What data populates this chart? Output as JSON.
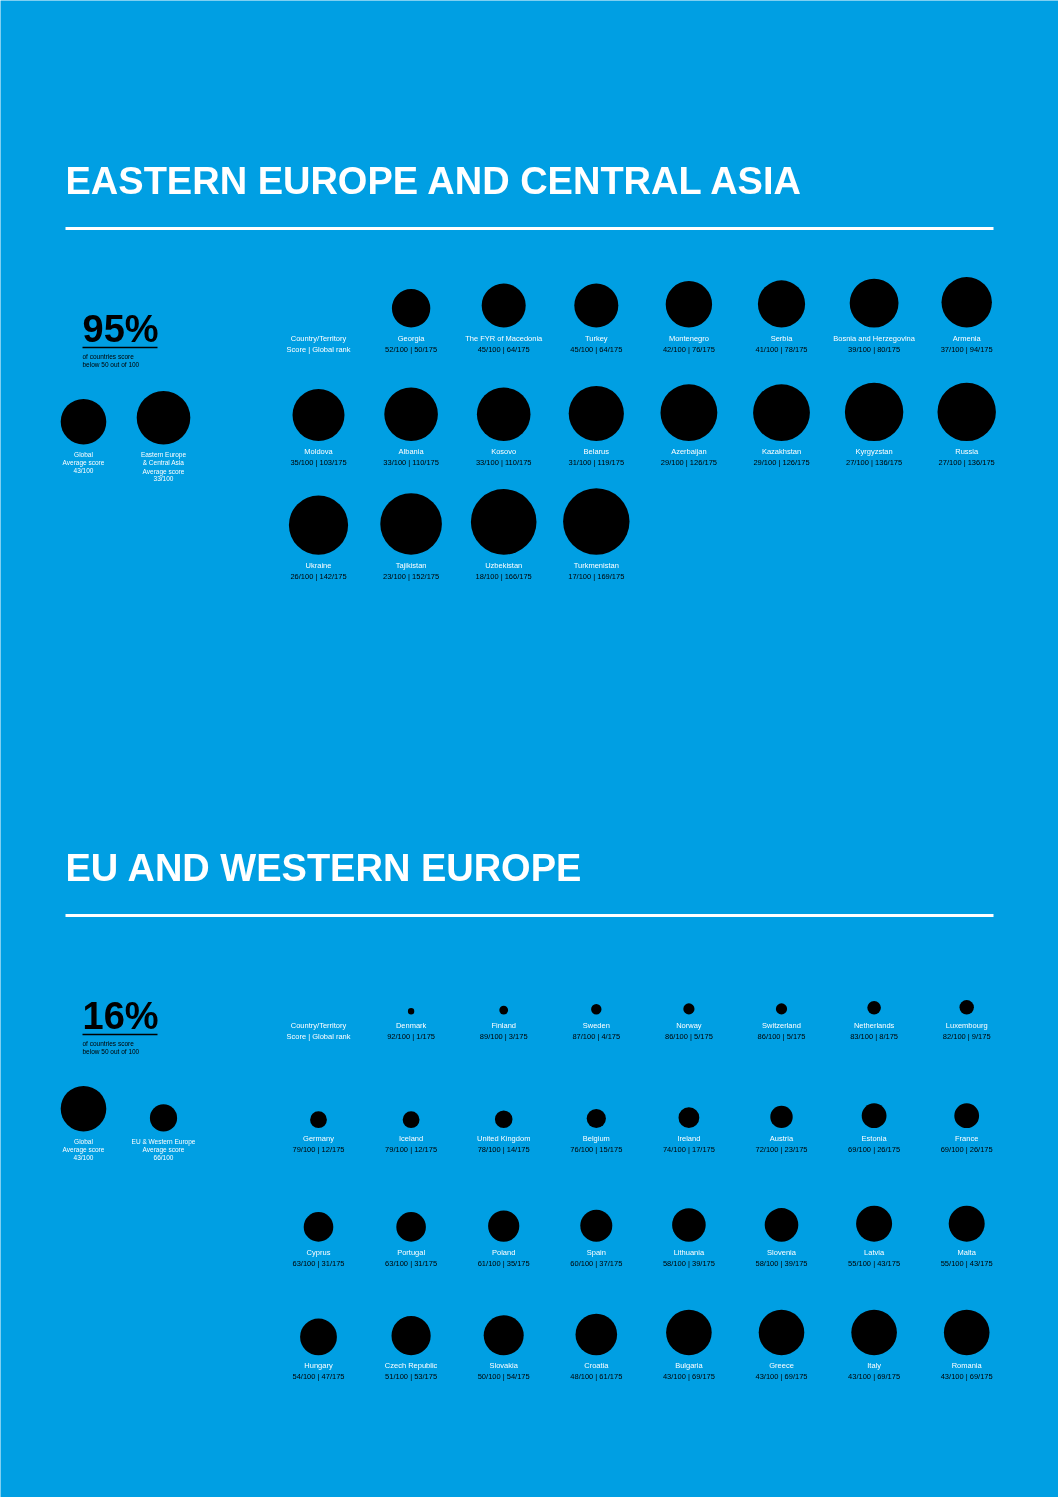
{
  "chart_data": [
    {
      "type": "other",
      "title": "EASTERN EUROPE AND CENTRAL ASIA",
      "color": "#000000",
      "annotations": [
        "95%",
        "of countries score\nbelow 50 out of 100",
        "Country/Territory\nScore | Global rank"
      ],
      "categories": [
        "Global\nAverage score",
        "Eastern Europe\n& Central Asia\nAverage score",
        "Georgia",
        "The FYR of Macedonia",
        "Turkey",
        "Montenegro",
        "Serbia",
        "Bosnia and Herzegovina",
        "Armenia",
        "Moldova",
        "Albania",
        "Kosovo",
        "Belarus",
        "Azerbaijan",
        "Kazakhstan",
        "Kyrgyzstan",
        "Russia",
        "Ukraine",
        "Tajikistan",
        "Uzbekistan",
        "Turkmenistan"
      ],
      "series": [
        {
          "values": [
            43,
            33,
            null,
            null,
            null,
            null,
            null,
            null,
            null,
            null,
            null,
            null,
            null,
            null,
            null,
            null,
            null,
            null,
            null,
            null,
            null
          ],
          "value_labels": [
            "43/100",
            "33/100",
            null,
            null,
            null,
            null,
            null,
            null,
            null,
            null,
            null,
            null,
            null,
            null,
            null,
            null,
            null,
            null,
            null,
            null,
            null
          ]
        },
        {
          "values": [
            null,
            null,
            52,
            45,
            45,
            42,
            41,
            39,
            37,
            35,
            33,
            33,
            31,
            29,
            29,
            27,
            27,
            26,
            23,
            18,
            17
          ],
          "value_labels": [
            null,
            null,
            "52/100 | 50/175",
            "45/100 | 64/175",
            "45/100 | 64/175",
            "42/100 | 76/175",
            "41/100 | 78/175",
            "39/100 | 80/175",
            "37/100 | 94/175",
            "35/100 | 103/175",
            "33/100 | 110/175",
            "33/100 | 110/175",
            "31/100 | 119/175",
            "29/100 | 126/175",
            "29/100 | 126/175",
            "27/100 | 136/175",
            "27/100 | 136/175",
            "26/100 | 142/175",
            "23/100 | 152/175",
            "18/100 | 166/175",
            "17/100 | 169/175"
          ]
        }
      ]
    },
    {
      "type": "other",
      "title": "EU AND WESTERN EUROPE",
      "color": "#000000",
      "annotations": [
        "16%",
        "of countries score\nbelow 50 out of 100",
        "Country/Territory\nScore | Global rank"
      ],
      "categories": [
        "Global\nAverage score",
        "EU & Western Europe\nAverage score",
        "Denmark",
        "Finland",
        "Sweden",
        "Norway",
        "Switzerland",
        "Netherlands",
        "Luxembourg",
        "Germany",
        "Iceland",
        "United Kingdom",
        "Belgium",
        "Ireland",
        "Austria",
        "Estonia",
        "France",
        "Cyprus",
        "Portugal",
        "Poland",
        "Spain",
        "Lithuania",
        "Slovenia",
        "Latvia",
        "Malta",
        "Hungary",
        "Czech Republic",
        "Slovakia",
        "Croatia",
        "Bulgaria",
        "Greece",
        "Italy",
        "Romania"
      ],
      "series": [
        {
          "values": [
            43,
            66,
            null,
            null,
            null,
            null,
            null,
            null,
            null,
            null,
            null,
            null,
            null,
            null,
            null,
            null,
            null,
            null,
            null,
            null,
            null,
            null,
            null,
            null,
            null,
            null,
            null,
            null,
            null,
            null,
            null,
            null,
            null
          ],
          "value_labels": [
            "43/100",
            "66/100",
            null,
            null,
            null,
            null,
            null,
            null,
            null,
            null,
            null,
            null,
            null,
            null,
            null,
            null,
            null,
            null,
            null,
            null,
            null,
            null,
            null,
            null,
            null,
            null,
            null,
            null,
            null,
            null,
            null,
            null,
            null
          ]
        },
        {
          "values": [
            null,
            null,
            92,
            89,
            87,
            86,
            86,
            83,
            82,
            79,
            79,
            78,
            76,
            74,
            72,
            69,
            69,
            63,
            63,
            61,
            60,
            58,
            58,
            55,
            55,
            54,
            51,
            50,
            48,
            43,
            43,
            43,
            43
          ],
          "value_labels": [
            null,
            null,
            "92/100 | 1/175",
            "89/100 | 3/175",
            "87/100 | 4/175",
            "86/100 | 5/175",
            "86/100 | 5/175",
            "83/100 | 8/175",
            "82/100 | 9/175",
            "79/100 | 12/175",
            "79/100 | 12/175",
            "78/100 | 14/175",
            "76/100 | 15/175",
            "74/100 | 17/175",
            "72/100 | 23/175",
            "69/100 | 26/175",
            "69/100 | 26/175",
            "63/100 | 31/175",
            "63/100 | 31/175",
            "61/100 | 35/175",
            "60/100 | 37/175",
            "58/100 | 39/175",
            "58/100 | 39/175",
            "55/100 | 43/175",
            "55/100 | 43/175",
            "54/100 | 47/175",
            "51/100 | 53/175",
            "50/100 | 54/175",
            "48/100 | 61/175",
            "43/100 | 69/175",
            "43/100 | 69/175",
            "43/100 | 69/175",
            "43/100 | 69/175"
          ]
        }
      ]
    }
  ]
}
